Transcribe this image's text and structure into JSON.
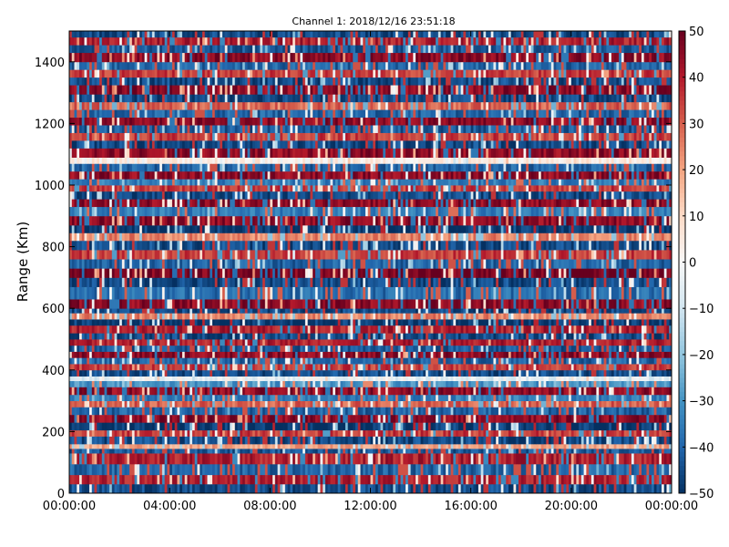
{
  "chart_data": {
    "type": "heatmap",
    "title": "Channel 1: 2018/12/16 23:51:18",
    "xlabel": "",
    "ylabel": "Range (Km)",
    "xlim_hours": [
      0,
      24
    ],
    "x_ticks": [
      {
        "hour": 0,
        "label": "00:00:00"
      },
      {
        "hour": 4,
        "label": "04:00:00"
      },
      {
        "hour": 8,
        "label": "08:00:00"
      },
      {
        "hour": 12,
        "label": "12:00:00"
      },
      {
        "hour": 16,
        "label": "16:00:00"
      },
      {
        "hour": 20,
        "label": "20:00:00"
      },
      {
        "hour": 24,
        "label": "00:00:00"
      }
    ],
    "ylim": [
      0,
      1500
    ],
    "y_ticks": [
      0,
      200,
      400,
      600,
      800,
      1000,
      1200,
      1400
    ],
    "colorbar": {
      "colormap": "RdBu_r",
      "range": [
        -50,
        50
      ],
      "ticks": [
        50,
        40,
        30,
        20,
        10,
        0,
        -10,
        -20,
        -30,
        -40,
        -50
      ],
      "colors": [
        "#053061",
        "#2166ac",
        "#4393c3",
        "#92c5de",
        "#d1e5f0",
        "#f7f7f7",
        "#fddbc7",
        "#f4a582",
        "#d6604d",
        "#b2182b",
        "#67001f"
      ]
    },
    "grid": false,
    "range_gates_km": [
      [
        0,
        30,
        -45
      ],
      [
        30,
        60,
        40
      ],
      [
        60,
        95,
        -40
      ],
      [
        95,
        130,
        40
      ],
      [
        130,
        145,
        -42
      ],
      [
        145,
        160,
        20
      ],
      [
        160,
        185,
        -45
      ],
      [
        185,
        205,
        35
      ],
      [
        205,
        230,
        -48
      ],
      [
        230,
        255,
        45
      ],
      [
        255,
        280,
        -40
      ],
      [
        280,
        300,
        30
      ],
      [
        300,
        320,
        -35
      ],
      [
        320,
        345,
        45
      ],
      [
        345,
        365,
        -30
      ],
      [
        365,
        380,
        -5
      ],
      [
        380,
        400,
        -45
      ],
      [
        400,
        420,
        35
      ],
      [
        420,
        440,
        -40
      ],
      [
        440,
        460,
        45
      ],
      [
        460,
        480,
        -42
      ],
      [
        480,
        500,
        40
      ],
      [
        500,
        520,
        -45
      ],
      [
        520,
        545,
        40
      ],
      [
        545,
        565,
        -48
      ],
      [
        565,
        585,
        25
      ],
      [
        585,
        600,
        -45
      ],
      [
        600,
        630,
        45
      ],
      [
        630,
        670,
        -38
      ],
      [
        670,
        700,
        -45
      ],
      [
        700,
        730,
        48
      ],
      [
        730,
        760,
        -40
      ],
      [
        760,
        790,
        35
      ],
      [
        790,
        820,
        -45
      ],
      [
        820,
        845,
        25
      ],
      [
        845,
        870,
        -48
      ],
      [
        870,
        900,
        45
      ],
      [
        900,
        930,
        -35
      ],
      [
        930,
        955,
        45
      ],
      [
        955,
        980,
        -45
      ],
      [
        980,
        1000,
        35
      ],
      [
        1000,
        1020,
        -35
      ],
      [
        1020,
        1045,
        45
      ],
      [
        1045,
        1070,
        -40
      ],
      [
        1070,
        1090,
        5
      ],
      [
        1090,
        1120,
        45
      ],
      [
        1120,
        1145,
        -45
      ],
      [
        1145,
        1170,
        35
      ],
      [
        1170,
        1195,
        -42
      ],
      [
        1195,
        1220,
        45
      ],
      [
        1220,
        1245,
        -40
      ],
      [
        1245,
        1270,
        30
      ],
      [
        1270,
        1295,
        -45
      ],
      [
        1295,
        1325,
        45
      ],
      [
        1325,
        1350,
        -45
      ],
      [
        1350,
        1375,
        35
      ],
      [
        1375,
        1400,
        -40
      ],
      [
        1400,
        1430,
        45
      ],
      [
        1430,
        1455,
        -42
      ],
      [
        1455,
        1480,
        40
      ],
      [
        1480,
        1500,
        -45
      ]
    ]
  }
}
